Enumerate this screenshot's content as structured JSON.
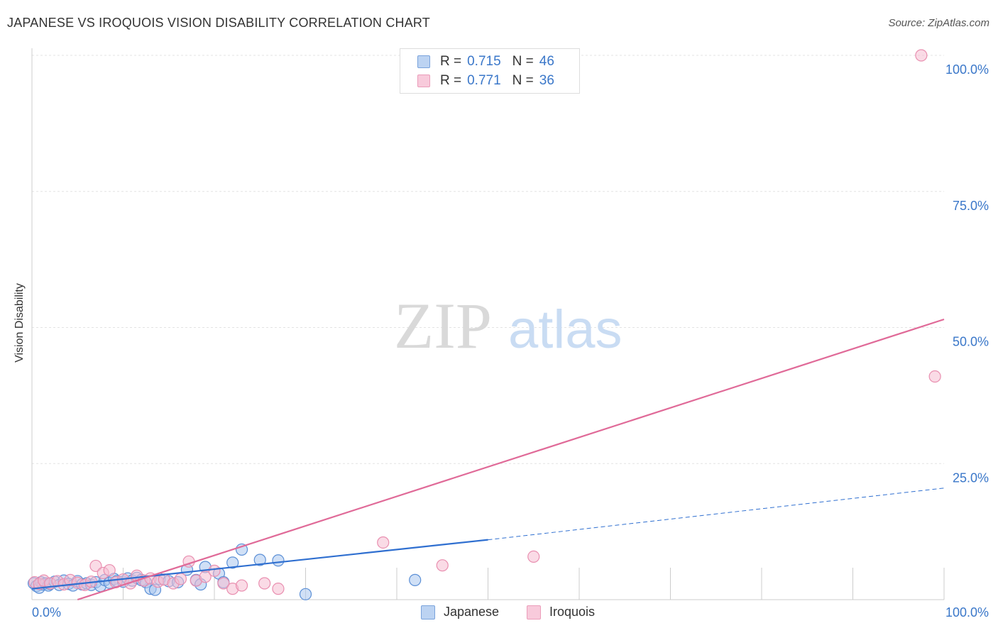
{
  "title": "JAPANESE VS IROQUOIS VISION DISABILITY CORRELATION CHART",
  "source": "Source: ZipAtlas.com",
  "watermark": {
    "zip": "ZIP",
    "atlas": "atlas"
  },
  "legend_top": [
    {
      "r_label": "R =",
      "r_value": "0.715",
      "n_label": "N =",
      "n_value": "46"
    },
    {
      "r_label": "R =",
      "r_value": "0.771",
      "n_label": "N =",
      "n_value": "36"
    }
  ],
  "chart_data": {
    "type": "scatter",
    "title": "JAPANESE VS IROQUOIS VISION DISABILITY CORRELATION CHART",
    "xlabel": "",
    "ylabel": "Vision Disability",
    "xlim": [
      0,
      100
    ],
    "ylim": [
      0,
      100
    ],
    "x_tick_labels": [
      "0.0%",
      "100.0%"
    ],
    "y_ticks": [
      25,
      50,
      75,
      100
    ],
    "y_tick_labels": [
      "25.0%",
      "50.0%",
      "75.0%",
      "100.0%"
    ],
    "legend_position": "bottom",
    "series": [
      {
        "name": "Japanese",
        "color": "#5b8fd6",
        "fill": "#a9c6ee",
        "trend": {
          "x0": 0,
          "y0": 2.0,
          "x1": 50,
          "y1": 11.0,
          "dash_to_x": 100,
          "dash_to_y": 20.5,
          "color": "#2f6fd0"
        },
        "points": [
          [
            0.2,
            3.0
          ],
          [
            0.5,
            2.5
          ],
          [
            0.8,
            2.2
          ],
          [
            1.0,
            3.2
          ],
          [
            1.2,
            2.8
          ],
          [
            1.5,
            3.0
          ],
          [
            1.8,
            2.6
          ],
          [
            2.0,
            2.9
          ],
          [
            2.5,
            3.3
          ],
          [
            3.0,
            2.7
          ],
          [
            3.5,
            3.5
          ],
          [
            4.0,
            2.9
          ],
          [
            4.5,
            2.6
          ],
          [
            5.0,
            3.4
          ],
          [
            5.5,
            2.8
          ],
          [
            6.0,
            3.0
          ],
          [
            6.5,
            2.7
          ],
          [
            7.0,
            3.2
          ],
          [
            7.5,
            2.5
          ],
          [
            8.0,
            3.6
          ],
          [
            8.5,
            3.1
          ],
          [
            9.0,
            3.8
          ],
          [
            9.3,
            3.4
          ],
          [
            10.0,
            3.3
          ],
          [
            10.5,
            3.9
          ],
          [
            11.0,
            3.5
          ],
          [
            11.5,
            4.0
          ],
          [
            12.0,
            3.6
          ],
          [
            12.5,
            3.2
          ],
          [
            13.0,
            2.0
          ],
          [
            13.5,
            1.8
          ],
          [
            14.0,
            3.8
          ],
          [
            15.0,
            3.4
          ],
          [
            16.0,
            3.2
          ],
          [
            17.0,
            5.5
          ],
          [
            18.0,
            3.6
          ],
          [
            18.5,
            2.8
          ],
          [
            19.0,
            6.0
          ],
          [
            20.5,
            4.8
          ],
          [
            21.0,
            3.2
          ],
          [
            22.0,
            6.8
          ],
          [
            23.0,
            9.2
          ],
          [
            25.0,
            7.3
          ],
          [
            27.0,
            7.2
          ],
          [
            30.0,
            1.0
          ],
          [
            42.0,
            3.6
          ]
        ]
      },
      {
        "name": "Iroquois",
        "color": "#e98fb0",
        "fill": "#f6bdd1",
        "trend": {
          "x0": 5,
          "y0": 0.0,
          "x1": 100,
          "y1": 51.5,
          "color": "#e06a98"
        },
        "points": [
          [
            0.3,
            3.2
          ],
          [
            0.8,
            2.9
          ],
          [
            1.3,
            3.5
          ],
          [
            2.0,
            3.0
          ],
          [
            2.8,
            3.4
          ],
          [
            3.5,
            2.8
          ],
          [
            4.2,
            3.6
          ],
          [
            5.0,
            3.1
          ],
          [
            5.8,
            2.7
          ],
          [
            6.5,
            3.3
          ],
          [
            7.0,
            6.2
          ],
          [
            7.8,
            4.9
          ],
          [
            8.5,
            5.4
          ],
          [
            9.2,
            3.2
          ],
          [
            10.0,
            3.7
          ],
          [
            10.8,
            3.0
          ],
          [
            11.5,
            4.4
          ],
          [
            12.3,
            3.5
          ],
          [
            13.0,
            3.9
          ],
          [
            13.8,
            3.3
          ],
          [
            14.5,
            3.7
          ],
          [
            15.5,
            3.0
          ],
          [
            16.3,
            3.8
          ],
          [
            17.2,
            7.0
          ],
          [
            18.0,
            3.5
          ],
          [
            19.0,
            4.2
          ],
          [
            20.0,
            5.3
          ],
          [
            21.0,
            3.0
          ],
          [
            22.0,
            2.0
          ],
          [
            23.0,
            2.6
          ],
          [
            25.5,
            3.0
          ],
          [
            27.0,
            2.0
          ],
          [
            38.5,
            10.5
          ],
          [
            45.0,
            6.3
          ],
          [
            55.0,
            7.9
          ],
          [
            99.0,
            41.0
          ]
        ]
      }
    ],
    "extra_points": [
      {
        "series": "Iroquois",
        "x": 97.5,
        "y": 100.0
      }
    ]
  },
  "legend_bottom": [
    "Japanese",
    "Iroquois"
  ]
}
